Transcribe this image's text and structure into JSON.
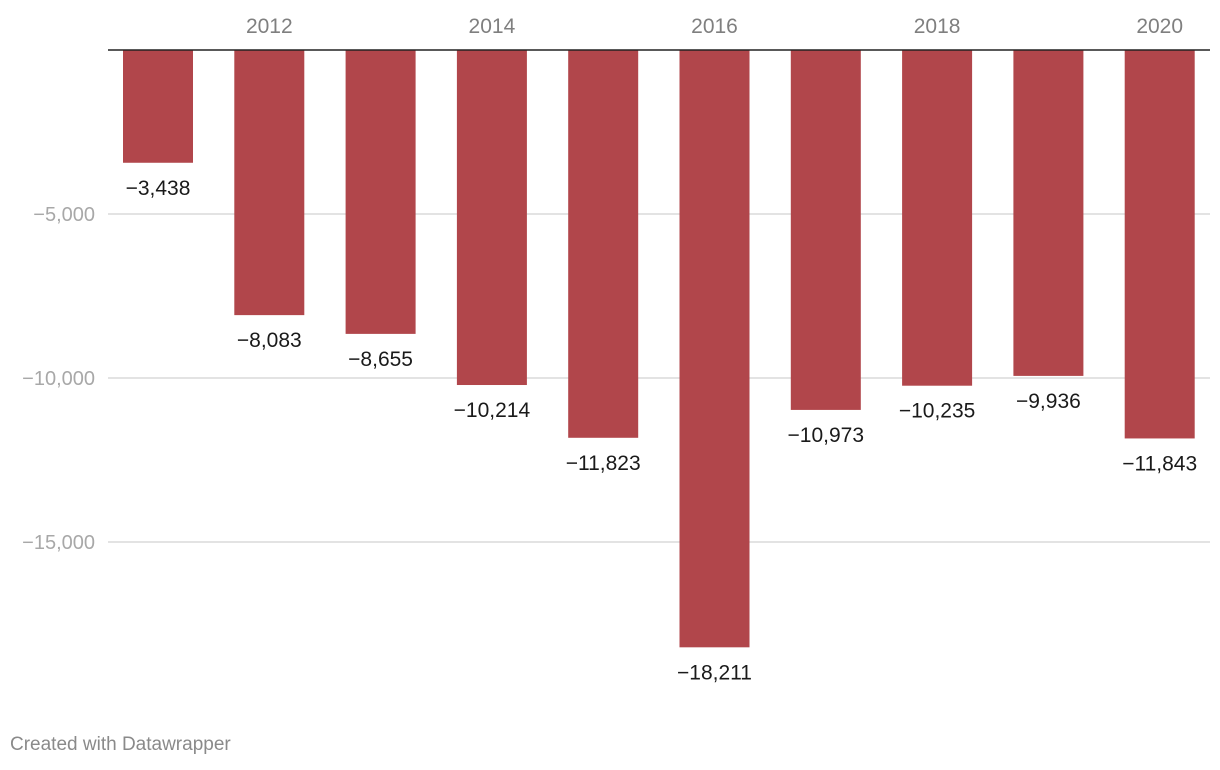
{
  "chart_data": {
    "type": "bar",
    "categories": [
      "2011",
      "2012",
      "2013",
      "2014",
      "2015",
      "2016",
      "2017",
      "2018",
      "2019",
      "2020"
    ],
    "values": [
      -3438,
      -8083,
      -8655,
      -10214,
      -11823,
      -18211,
      -10973,
      -10235,
      -9936,
      -11843
    ],
    "value_labels": [
      "−3,438",
      "−8,083",
      "−8,655",
      "−10,214",
      "−11,823",
      "−18,211",
      "−10,973",
      "−10,235",
      "−9,936",
      "−11,843"
    ],
    "x_tick_labels": [
      {
        "category": "2012",
        "label": "2012"
      },
      {
        "category": "2014",
        "label": "2014"
      },
      {
        "category": "2016",
        "label": "2016"
      },
      {
        "category": "2018",
        "label": "2018"
      },
      {
        "category": "2020",
        "label": "2020"
      }
    ],
    "y_ticks": [
      {
        "value": -5000,
        "label": "−5,000"
      },
      {
        "value": -10000,
        "label": "−10,000"
      },
      {
        "value": -15000,
        "label": "−15,000"
      }
    ],
    "ylim": [
      -19000,
      0
    ],
    "x_axis_position": "top",
    "grid": true,
    "title": "",
    "xlabel": "",
    "ylabel": "",
    "bar_color": "#b1464b"
  },
  "footer": {
    "credit": "Created with Datawrapper"
  }
}
